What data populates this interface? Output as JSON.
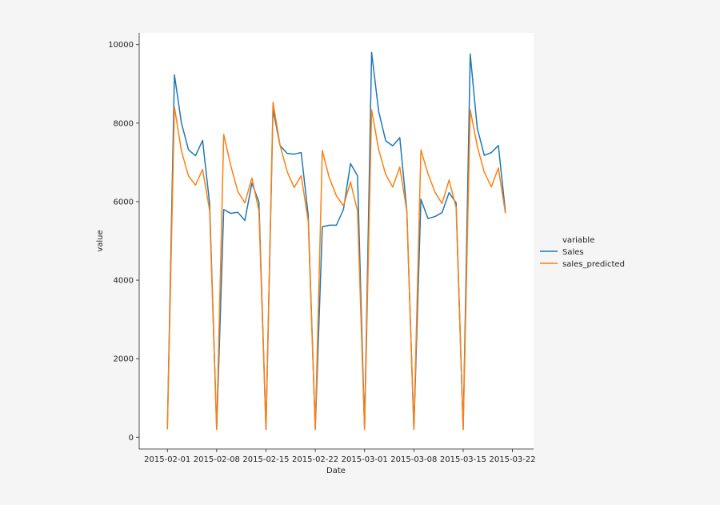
{
  "chart_data": {
    "type": "line",
    "title": "",
    "xlabel": "Date",
    "ylabel": "value",
    "ylim": [
      -300,
      10300
    ],
    "yticks": [
      0,
      2000,
      4000,
      6000,
      8000,
      10000
    ],
    "yticklabels": [
      "0",
      "2000",
      "4000",
      "6000",
      "8000",
      "10000"
    ],
    "xlim_days": [
      -4,
      52
    ],
    "xtick_days": [
      0,
      7,
      14,
      21,
      28,
      35,
      42,
      49
    ],
    "xticklabels": [
      "2015-02-01",
      "2015-02-08",
      "2015-02-15",
      "2015-02-22",
      "2015-03-01",
      "2015-03-08",
      "2015-03-15",
      "2015-03-22"
    ],
    "grid": false,
    "legend": {
      "title": "variable",
      "placement": "right"
    },
    "x_days": [
      0,
      1,
      2,
      3,
      4,
      5,
      6,
      7,
      8,
      9,
      10,
      11,
      12,
      13,
      14,
      15,
      16,
      17,
      18,
      19,
      20,
      21,
      22,
      23,
      24,
      25,
      26,
      27,
      28,
      29,
      30,
      31,
      32,
      33,
      34,
      35,
      36,
      37,
      38,
      39,
      40,
      41,
      42,
      43,
      44,
      45,
      46,
      47,
      48
    ],
    "series": [
      {
        "name": "Sales",
        "color": "#1f77b4",
        "values": [
          200,
          9230,
          8000,
          7320,
          7170,
          7560,
          5950,
          200,
          5800,
          5700,
          5730,
          5520,
          6470,
          5990,
          200,
          8350,
          7430,
          7230,
          7210,
          7250,
          5650,
          200,
          5360,
          5400,
          5400,
          5800,
          6970,
          6660,
          200,
          9800,
          8300,
          7550,
          7420,
          7630,
          5770,
          200,
          6060,
          5570,
          5620,
          5720,
          6230,
          5970,
          200,
          9760,
          7870,
          7180,
          7250,
          7430,
          5730
        ]
      },
      {
        "name": "sales_predicted",
        "color": "#ff7f0e",
        "values": [
          200,
          8410,
          7290,
          6650,
          6420,
          6820,
          5780,
          200,
          7710,
          6920,
          6260,
          5970,
          6600,
          5770,
          200,
          8530,
          7440,
          6770,
          6360,
          6660,
          5500,
          200,
          7300,
          6600,
          6150,
          5890,
          6500,
          5760,
          200,
          8340,
          7330,
          6690,
          6370,
          6880,
          5760,
          200,
          7320,
          6710,
          6240,
          5950,
          6550,
          5850,
          200,
          8340,
          7410,
          6750,
          6380,
          6860,
          5700
        ]
      }
    ]
  }
}
